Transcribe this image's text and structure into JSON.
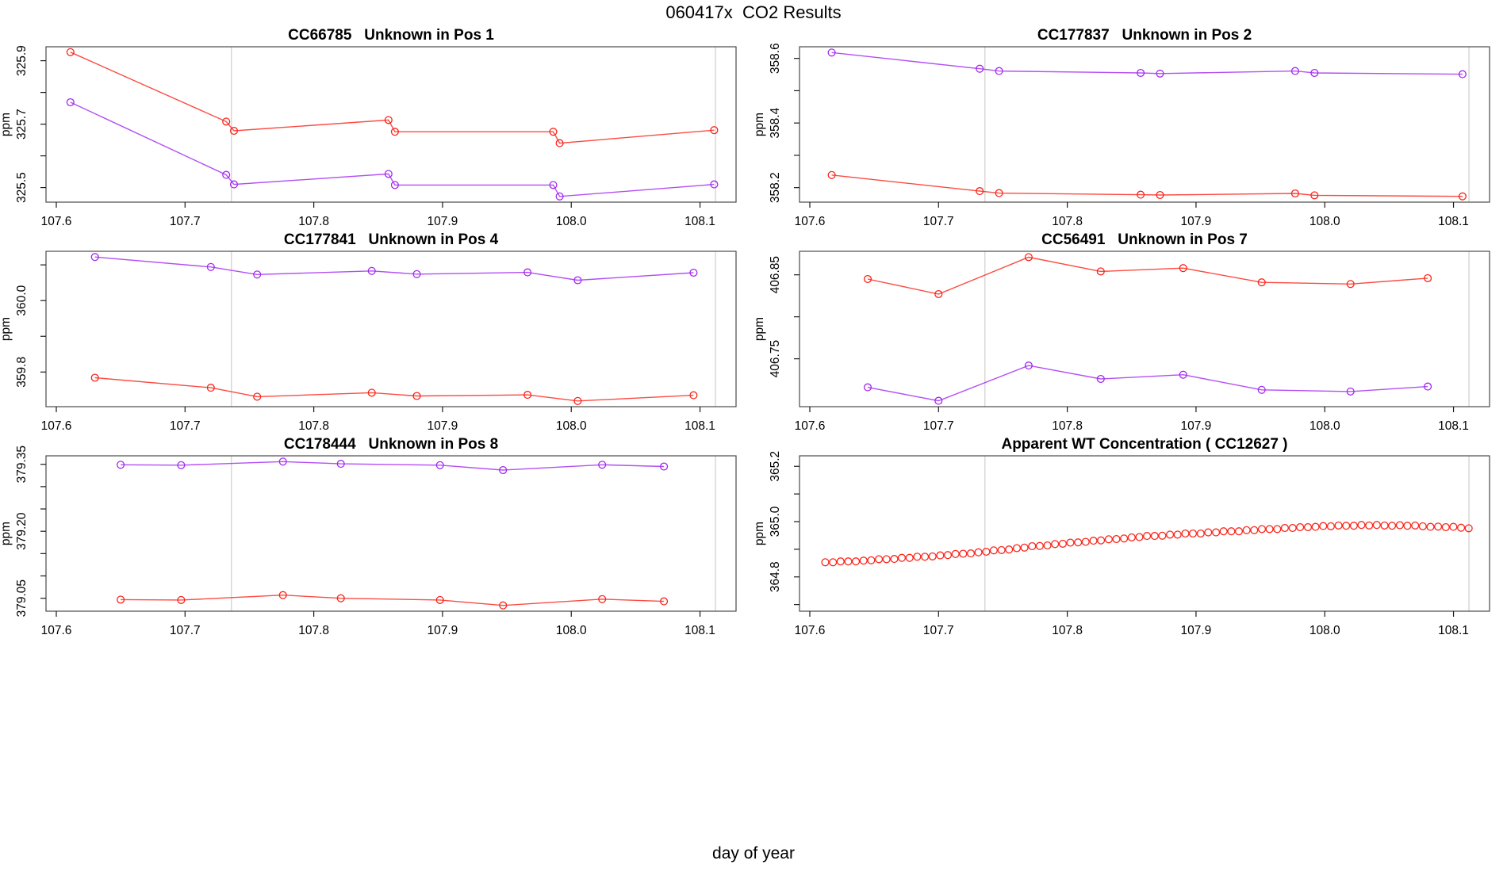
{
  "main_title": "060417x  CO2 Results",
  "outer_xlabel": "day of year",
  "colors": {
    "red": "#fb2318",
    "purple": "#a228f0",
    "vline": "#d8d8d8",
    "frame": "#4a4a4a",
    "tick": "#1a1a1a",
    "text": "#000000"
  },
  "x_axis": {
    "lim": [
      107.592,
      108.128
    ],
    "ticks": [
      107.6,
      107.7,
      107.8,
      107.9,
      108.0,
      108.1
    ],
    "tick_labels": [
      "107.6",
      "107.7",
      "107.8",
      "107.9",
      "108.0",
      "108.1"
    ],
    "vlines": [
      107.736,
      108.112
    ]
  },
  "chart_data": [
    {
      "type": "line",
      "title": "CC66785   Unknown in Pos 1",
      "ylabel": "ppm",
      "ylim": [
        325.454,
        325.944
      ],
      "y_ticks": [
        325.5,
        325.6,
        325.7,
        325.8,
        325.9
      ],
      "y_tick_labels": [
        "325.5",
        "",
        "325.7",
        "",
        "325.9"
      ],
      "series": [
        {
          "name": "red",
          "color_key": "red",
          "marker": "circle",
          "line": true,
          "x": [
            107.611,
            107.732,
            107.738,
            107.858,
            107.863,
            107.986,
            107.991,
            108.111
          ],
          "y": [
            325.927,
            325.708,
            325.679,
            325.713,
            325.676,
            325.676,
            325.64,
            325.681
          ]
        },
        {
          "name": "purple",
          "color_key": "purple",
          "marker": "circle",
          "line": true,
          "x": [
            107.611,
            107.732,
            107.738,
            107.858,
            107.863,
            107.986,
            107.991,
            108.111
          ],
          "y": [
            325.769,
            325.54,
            325.51,
            325.543,
            325.508,
            325.508,
            325.472,
            325.51
          ]
        }
      ]
    },
    {
      "type": "line",
      "title": "CC177837   Unknown in Pos 2",
      "ylabel": "ppm",
      "ylim": [
        358.155,
        358.636
      ],
      "y_ticks": [
        358.2,
        358.3,
        358.4,
        358.5,
        358.6
      ],
      "y_tick_labels": [
        "358.2",
        "",
        "358.4",
        "",
        "358.6"
      ],
      "series": [
        {
          "name": "purple",
          "color_key": "purple",
          "marker": "circle",
          "line": true,
          "x": [
            107.617,
            107.732,
            107.747,
            107.857,
            107.872,
            107.977,
            107.992,
            108.107
          ],
          "y": [
            358.618,
            358.568,
            358.561,
            358.555,
            358.553,
            358.561,
            358.555,
            358.551
          ]
        },
        {
          "name": "red",
          "color_key": "red",
          "marker": "circle",
          "line": true,
          "x": [
            107.617,
            107.732,
            107.747,
            107.857,
            107.872,
            107.977,
            107.992,
            108.107
          ],
          "y": [
            358.239,
            358.189,
            358.183,
            358.178,
            358.177,
            358.182,
            358.176,
            358.173
          ]
        }
      ]
    },
    {
      "type": "line",
      "title": "CC177841   Unknown in Pos 4",
      "ylabel": "ppm",
      "ylim": [
        359.703,
        360.138
      ],
      "y_ticks": [
        359.8,
        359.9,
        360.0,
        360.1
      ],
      "y_tick_labels": [
        "359.8",
        "",
        "360.0",
        ""
      ],
      "series": [
        {
          "name": "purple",
          "color_key": "purple",
          "marker": "circle",
          "line": true,
          "x": [
            107.63,
            107.72,
            107.756,
            107.845,
            107.88,
            107.966,
            108.005,
            108.095
          ],
          "y": [
            360.122,
            360.094,
            360.073,
            360.083,
            360.074,
            360.079,
            360.057,
            360.078
          ]
        },
        {
          "name": "red",
          "color_key": "red",
          "marker": "circle",
          "line": true,
          "x": [
            107.63,
            107.72,
            107.756,
            107.845,
            107.88,
            107.966,
            108.005,
            108.095
          ],
          "y": [
            359.784,
            359.756,
            359.731,
            359.742,
            359.733,
            359.736,
            359.719,
            359.735
          ]
        }
      ]
    },
    {
      "type": "line",
      "title": "CC56491   Unknown in Pos 7",
      "ylabel": "ppm",
      "ylim": [
        406.693,
        406.878
      ],
      "y_ticks": [
        406.75,
        406.8,
        406.85
      ],
      "y_tick_labels": [
        "406.75",
        "",
        "406.85"
      ],
      "series": [
        {
          "name": "red",
          "color_key": "red",
          "marker": "circle",
          "line": true,
          "x": [
            107.645,
            107.7,
            107.77,
            107.826,
            107.89,
            107.951,
            108.02,
            108.08
          ],
          "y": [
            406.845,
            406.827,
            406.871,
            406.854,
            406.858,
            406.841,
            406.839,
            406.846
          ]
        },
        {
          "name": "purple",
          "color_key": "purple",
          "marker": "circle",
          "line": true,
          "x": [
            107.645,
            107.7,
            107.77,
            107.826,
            107.89,
            107.951,
            108.02,
            108.08
          ],
          "y": [
            406.716,
            406.7,
            406.742,
            406.726,
            406.731,
            406.713,
            406.711,
            406.717
          ]
        }
      ]
    },
    {
      "type": "line",
      "title": "CC178444   Unknown in Pos 8",
      "ylabel": "ppm",
      "ylim": [
        379.021,
        379.369
      ],
      "y_ticks": [
        379.05,
        379.1,
        379.15,
        379.2,
        379.25,
        379.3,
        379.35
      ],
      "y_tick_labels": [
        "379.05",
        "",
        "",
        "379.20",
        "",
        "",
        "379.35"
      ],
      "series": [
        {
          "name": "purple",
          "color_key": "purple",
          "marker": "circle",
          "line": true,
          "x": [
            107.65,
            107.697,
            107.776,
            107.821,
            107.898,
            107.947,
            108.024,
            108.072
          ],
          "y": [
            379.349,
            379.348,
            379.356,
            379.351,
            379.348,
            379.337,
            379.349,
            379.345
          ]
        },
        {
          "name": "red",
          "color_key": "red",
          "marker": "circle",
          "line": true,
          "x": [
            107.65,
            107.697,
            107.776,
            107.821,
            107.898,
            107.947,
            108.024,
            108.072
          ],
          "y": [
            379.047,
            379.046,
            379.057,
            379.05,
            379.046,
            379.034,
            379.048,
            379.043
          ]
        }
      ]
    },
    {
      "type": "scatter",
      "title": "Apparent WT Concentration ( CC12627 )",
      "ylabel": "ppm",
      "ylim": [
        364.676,
        365.238
      ],
      "y_ticks": [
        364.7,
        364.8,
        364.9,
        365.0,
        365.1,
        365.2
      ],
      "y_tick_labels": [
        "",
        "364.8",
        "",
        "365.0",
        "",
        "365.2"
      ],
      "series": [
        {
          "name": "red",
          "color_key": "red",
          "marker": "circle",
          "line": false,
          "x": [
            107.612,
            107.618,
            107.6239,
            107.6299,
            107.6358,
            107.6418,
            107.6477,
            107.6537,
            107.6596,
            107.6656,
            107.6715,
            107.6775,
            107.6834,
            107.6894,
            107.6953,
            107.7013,
            107.7072,
            107.7132,
            107.7191,
            107.7251,
            107.731,
            107.737,
            107.7429,
            107.7489,
            107.7548,
            107.7608,
            107.7667,
            107.7727,
            107.7786,
            107.7846,
            107.7905,
            107.7965,
            107.8024,
            107.8084,
            107.8143,
            107.8203,
            107.8262,
            107.8322,
            107.8381,
            107.8441,
            107.85,
            107.856,
            107.8619,
            107.8679,
            107.8738,
            107.8798,
            107.8857,
            107.8917,
            107.8976,
            107.9036,
            107.9095,
            107.9155,
            107.9214,
            107.9274,
            107.9333,
            107.9393,
            107.9452,
            107.9512,
            107.9571,
            107.9631,
            107.969,
            107.975,
            107.9809,
            107.9869,
            107.9928,
            107.9988,
            108.0047,
            108.0107,
            108.0166,
            108.0226,
            108.0285,
            108.0345,
            108.0404,
            108.0464,
            108.0523,
            108.0583,
            108.0642,
            108.0702,
            108.0761,
            108.0821,
            108.088,
            108.094,
            108.0999,
            108.1059,
            108.1118
          ],
          "y": [
            364.853,
            364.853,
            364.856,
            364.856,
            364.856,
            364.859,
            364.86,
            364.864,
            364.864,
            364.865,
            364.869,
            364.869,
            364.873,
            364.873,
            364.874,
            364.878,
            364.879,
            364.883,
            364.884,
            364.885,
            364.889,
            364.891,
            364.896,
            364.897,
            364.899,
            364.904,
            364.906,
            364.911,
            364.912,
            364.914,
            364.919,
            364.92,
            364.924,
            364.925,
            364.927,
            364.931,
            364.932,
            364.936,
            364.937,
            364.939,
            364.943,
            364.944,
            364.948,
            364.948,
            364.949,
            364.953,
            364.953,
            364.957,
            364.957,
            364.957,
            364.961,
            364.961,
            364.965,
            364.965,
            364.965,
            364.969,
            364.969,
            364.973,
            364.973,
            364.973,
            364.977,
            364.977,
            364.98,
            364.98,
            364.981,
            364.984,
            364.983,
            364.986,
            364.985,
            364.985,
            364.988,
            364.986,
            364.988,
            364.986,
            364.985,
            364.987,
            364.985,
            364.986,
            364.983,
            364.981,
            364.982,
            364.98,
            364.981,
            364.978,
            364.976
          ]
        }
      ]
    }
  ]
}
